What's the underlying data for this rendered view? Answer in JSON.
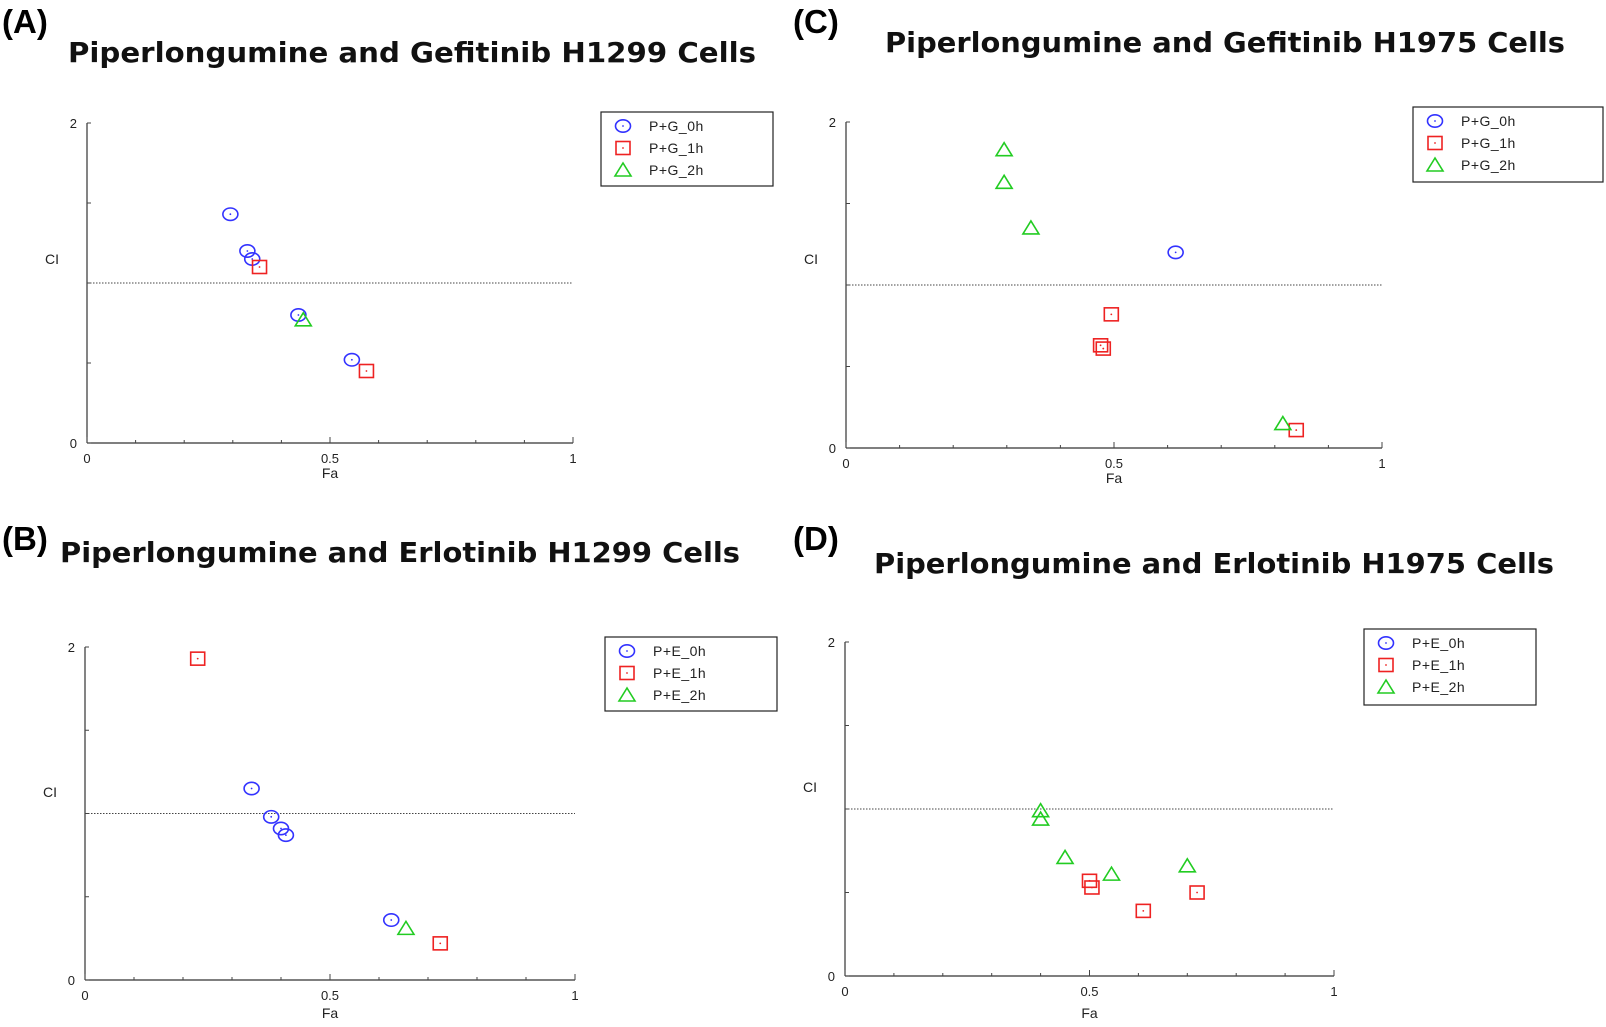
{
  "chart_data": [
    {
      "type": "scatter",
      "panel": "(A)",
      "title": "Piperlongumine and Gefitinib H1299 Cells",
      "xlabel": "Fa",
      "ylabel": "CI",
      "xlim": [
        0,
        1
      ],
      "ylim": [
        0,
        2
      ],
      "x_ticks": [
        "0",
        "0.5",
        "1"
      ],
      "y_ticks": [
        "0",
        "2"
      ],
      "reference_line": 1,
      "legend_position": "top-right",
      "series": [
        {
          "name": "P+G_0h",
          "marker": "circle",
          "color": "#3333ff",
          "points": [
            [
              0.295,
              1.43
            ],
            [
              0.33,
              1.2
            ],
            [
              0.34,
              1.15
            ],
            [
              0.435,
              0.8
            ],
            [
              0.545,
              0.52
            ]
          ]
        },
        {
          "name": "P+G_1h",
          "marker": "square",
          "color": "#ee2222",
          "points": [
            [
              0.355,
              1.1
            ],
            [
              0.575,
              0.45
            ]
          ]
        },
        {
          "name": "P+G_2h",
          "marker": "triangle",
          "color": "#22cc22",
          "points": [
            [
              0.445,
              0.77
            ]
          ]
        }
      ]
    },
    {
      "type": "scatter",
      "panel": "(B)",
      "title": "Piperlongumine and Erlotinib H1299 Cells",
      "xlabel": "Fa",
      "ylabel": "CI",
      "xlim": [
        0,
        1
      ],
      "ylim": [
        0,
        2
      ],
      "x_ticks": [
        "0",
        "0.5",
        "1"
      ],
      "y_ticks": [
        "0",
        "2"
      ],
      "reference_line": 1,
      "legend_position": "top-right",
      "series": [
        {
          "name": "P+E_0h",
          "marker": "circle",
          "color": "#3333ff",
          "points": [
            [
              0.34,
              1.15
            ],
            [
              0.38,
              0.98
            ],
            [
              0.4,
              0.91
            ],
            [
              0.41,
              0.87
            ],
            [
              0.625,
              0.36
            ]
          ]
        },
        {
          "name": "P+E_1h",
          "marker": "square",
          "color": "#ee2222",
          "points": [
            [
              0.23,
              1.93
            ],
            [
              0.725,
              0.22
            ]
          ]
        },
        {
          "name": "P+E_2h",
          "marker": "triangle",
          "color": "#22cc22",
          "points": [
            [
              0.655,
              0.31
            ]
          ]
        }
      ]
    },
    {
      "type": "scatter",
      "panel": "(C)",
      "title": "Piperlongumine and Gefitinib H1975 Cells",
      "xlabel": "Fa",
      "ylabel": "CI",
      "xlim": [
        0,
        1
      ],
      "ylim": [
        0,
        2
      ],
      "x_ticks": [
        "0",
        "0.5",
        "1"
      ],
      "y_ticks": [
        "0",
        "2"
      ],
      "reference_line": 1,
      "legend_position": "top-right",
      "series": [
        {
          "name": "P+G_0h",
          "marker": "circle",
          "color": "#3333ff",
          "points": [
            [
              0.615,
              1.2
            ]
          ]
        },
        {
          "name": "P+G_1h",
          "marker": "square",
          "color": "#ee2222",
          "points": [
            [
              0.495,
              0.82
            ],
            [
              0.475,
              0.63
            ],
            [
              0.48,
              0.61
            ],
            [
              0.84,
              0.11
            ]
          ]
        },
        {
          "name": "P+G_2h",
          "marker": "triangle",
          "color": "#22cc22",
          "points": [
            [
              0.295,
              1.83
            ],
            [
              0.295,
              1.63
            ],
            [
              0.345,
              1.35
            ],
            [
              0.815,
              0.15
            ]
          ]
        }
      ]
    },
    {
      "type": "scatter",
      "panel": "(D)",
      "title": "Piperlongumine and Erlotinib H1975 Cells",
      "xlabel": "Fa",
      "ylabel": "CI",
      "xlim": [
        0,
        1
      ],
      "ylim": [
        0,
        2
      ],
      "x_ticks": [
        "0",
        "0.5",
        "1"
      ],
      "y_ticks": [
        "0",
        "2"
      ],
      "reference_line": 1,
      "legend_position": "top-right",
      "series": [
        {
          "name": "P+E_0h",
          "marker": "circle",
          "color": "#3333ff",
          "points": []
        },
        {
          "name": "P+E_1h",
          "marker": "square",
          "color": "#ee2222",
          "points": [
            [
              0.5,
              0.57
            ],
            [
              0.505,
              0.53
            ],
            [
              0.61,
              0.39
            ],
            [
              0.72,
              0.5
            ]
          ]
        },
        {
          "name": "P+E_2h",
          "marker": "triangle",
          "color": "#22cc22",
          "points": [
            [
              0.4,
              0.99
            ],
            [
              0.4,
              0.94
            ],
            [
              0.45,
              0.71
            ],
            [
              0.545,
              0.61
            ],
            [
              0.7,
              0.66
            ]
          ]
        }
      ]
    }
  ]
}
